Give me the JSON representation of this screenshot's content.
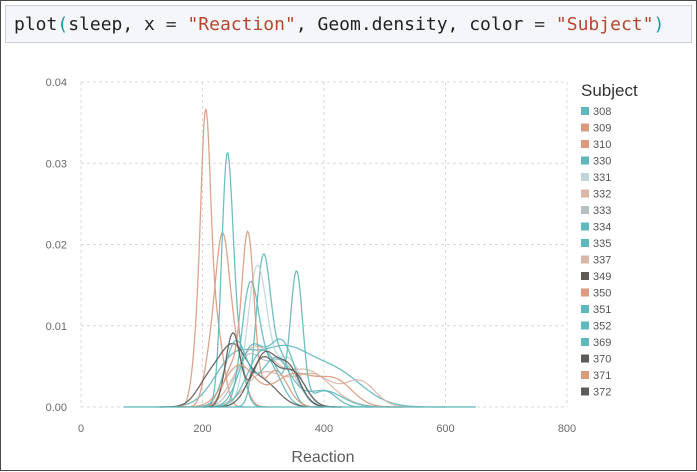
{
  "code": {
    "func": "plot",
    "open_paren": "(",
    "arg1": "sleep, x ",
    "eq1": "=",
    "str1": "\"Reaction\"",
    "arg2": ", Geom.density, color ",
    "eq2": "=",
    "str2": "\"Subject\"",
    "close_paren": ")"
  },
  "colors": {
    "teal": "#5fb8bb",
    "salmon": "#d99a80",
    "light_teal": "#bcd6da",
    "light_salmon": "#d7b8a8",
    "grey": "#b8bfc2",
    "dark": "#5d5a58"
  },
  "chart_data": {
    "type": "area",
    "xlabel": "Reaction",
    "ylabel": "",
    "xlim": [
      0,
      800
    ],
    "ylim": [
      0,
      0.04
    ],
    "x_ticks": [
      "0",
      "200",
      "400",
      "600",
      "800"
    ],
    "y_ticks": [
      "0.00",
      "0.01",
      "0.02",
      "0.03",
      "0.04"
    ],
    "grid": true,
    "legend": {
      "title": "Subject",
      "placement": "right",
      "entries": [
        {
          "name": "308",
          "color": "#5fb8bb"
        },
        {
          "name": "309",
          "color": "#d99a80"
        },
        {
          "name": "310",
          "color": "#d99a80"
        },
        {
          "name": "330",
          "color": "#5fb8bb"
        },
        {
          "name": "331",
          "color": "#bcd6da"
        },
        {
          "name": "332",
          "color": "#d7b8a8"
        },
        {
          "name": "333",
          "color": "#b8bfc2"
        },
        {
          "name": "334",
          "color": "#5fb8bb"
        },
        {
          "name": "335",
          "color": "#5fb8bb"
        },
        {
          "name": "337",
          "color": "#d7b8a8"
        },
        {
          "name": "349",
          "color": "#5d5a58"
        },
        {
          "name": "350",
          "color": "#d99a80"
        },
        {
          "name": "351",
          "color": "#5fb8bb"
        },
        {
          "name": "352",
          "color": "#5fb8bb"
        },
        {
          "name": "369",
          "color": "#5fb8bb"
        },
        {
          "name": "370",
          "color": "#5d5a58"
        },
        {
          "name": "371",
          "color": "#d99a80"
        },
        {
          "name": "372",
          "color": "#5d5a58"
        }
      ]
    },
    "series": [
      {
        "name": "308",
        "color": "#5fb8bb",
        "peaks": [
          [
            250,
            0.0052,
            32
          ],
          [
            330,
            0.0068,
            45
          ],
          [
            420,
            0.004,
            45
          ]
        ]
      },
      {
        "name": "309",
        "color": "#d99a80",
        "peaks": [
          [
            205,
            0.032,
            8
          ],
          [
            222,
            0.01,
            12
          ],
          [
            190,
            0.006,
            8
          ]
        ]
      },
      {
        "name": "310",
        "color": "#d99a80",
        "peaks": [
          [
            232,
            0.0195,
            12
          ],
          [
            255,
            0.006,
            14
          ],
          [
            210,
            0.004,
            10
          ]
        ]
      },
      {
        "name": "330",
        "color": "#5fb8bb",
        "peaks": [
          [
            300,
            0.018,
            12
          ],
          [
            330,
            0.006,
            15
          ]
        ]
      },
      {
        "name": "331",
        "color": "#bcd6da",
        "peaks": [
          [
            290,
            0.017,
            16
          ],
          [
            340,
            0.006,
            22
          ]
        ]
      },
      {
        "name": "332",
        "color": "#d7b8a8",
        "peaks": [
          [
            285,
            0.007,
            30
          ],
          [
            370,
            0.0045,
            40
          ]
        ]
      },
      {
        "name": "333",
        "color": "#b8bfc2",
        "peaks": [
          [
            275,
            0.006,
            22
          ],
          [
            330,
            0.0055,
            25
          ]
        ]
      },
      {
        "name": "334",
        "color": "#5fb8bb",
        "peaks": [
          [
            278,
            0.014,
            14
          ],
          [
            310,
            0.005,
            20
          ]
        ]
      },
      {
        "name": "335",
        "color": "#5fb8bb",
        "peaks": [
          [
            240,
            0.0275,
            9
          ],
          [
            255,
            0.008,
            12
          ]
        ]
      },
      {
        "name": "337",
        "color": "#d7b8a8",
        "peaks": [
          [
            300,
            0.004,
            30
          ],
          [
            380,
            0.004,
            35
          ],
          [
            460,
            0.003,
            25
          ]
        ]
      },
      {
        "name": "349",
        "color": "#5d5a58",
        "peaks": [
          [
            210,
            0.003,
            20
          ],
          [
            250,
            0.007,
            22
          ],
          [
            300,
            0.003,
            25
          ]
        ]
      },
      {
        "name": "350",
        "color": "#d99a80",
        "peaks": [
          [
            275,
            0.02,
            10
          ],
          [
            250,
            0.005,
            15
          ],
          [
            320,
            0.0045,
            20
          ]
        ]
      },
      {
        "name": "351",
        "color": "#5fb8bb",
        "peaks": [
          [
            255,
            0.008,
            18
          ],
          [
            320,
            0.006,
            25
          ],
          [
            400,
            0.002,
            30
          ]
        ]
      },
      {
        "name": "352",
        "color": "#5fb8bb",
        "peaks": [
          [
            300,
            0.007,
            25
          ],
          [
            355,
            0.016,
            10
          ],
          [
            400,
            0.002,
            20
          ]
        ]
      },
      {
        "name": "369",
        "color": "#5fb8bb",
        "peaks": [
          [
            280,
            0.007,
            20
          ],
          [
            330,
            0.008,
            22
          ]
        ]
      },
      {
        "name": "370",
        "color": "#5d5a58",
        "peaks": [
          [
            250,
            0.009,
            12
          ],
          [
            300,
            0.006,
            18
          ],
          [
            340,
            0.005,
            20
          ]
        ]
      },
      {
        "name": "371",
        "color": "#d99a80",
        "peaks": [
          [
            260,
            0.005,
            25
          ],
          [
            350,
            0.004,
            35
          ],
          [
            420,
            0.003,
            28
          ]
        ]
      },
      {
        "name": "372",
        "color": "#5d5a58",
        "peaks": [
          [
            300,
            0.006,
            22
          ],
          [
            350,
            0.004,
            20
          ]
        ]
      }
    ]
  }
}
